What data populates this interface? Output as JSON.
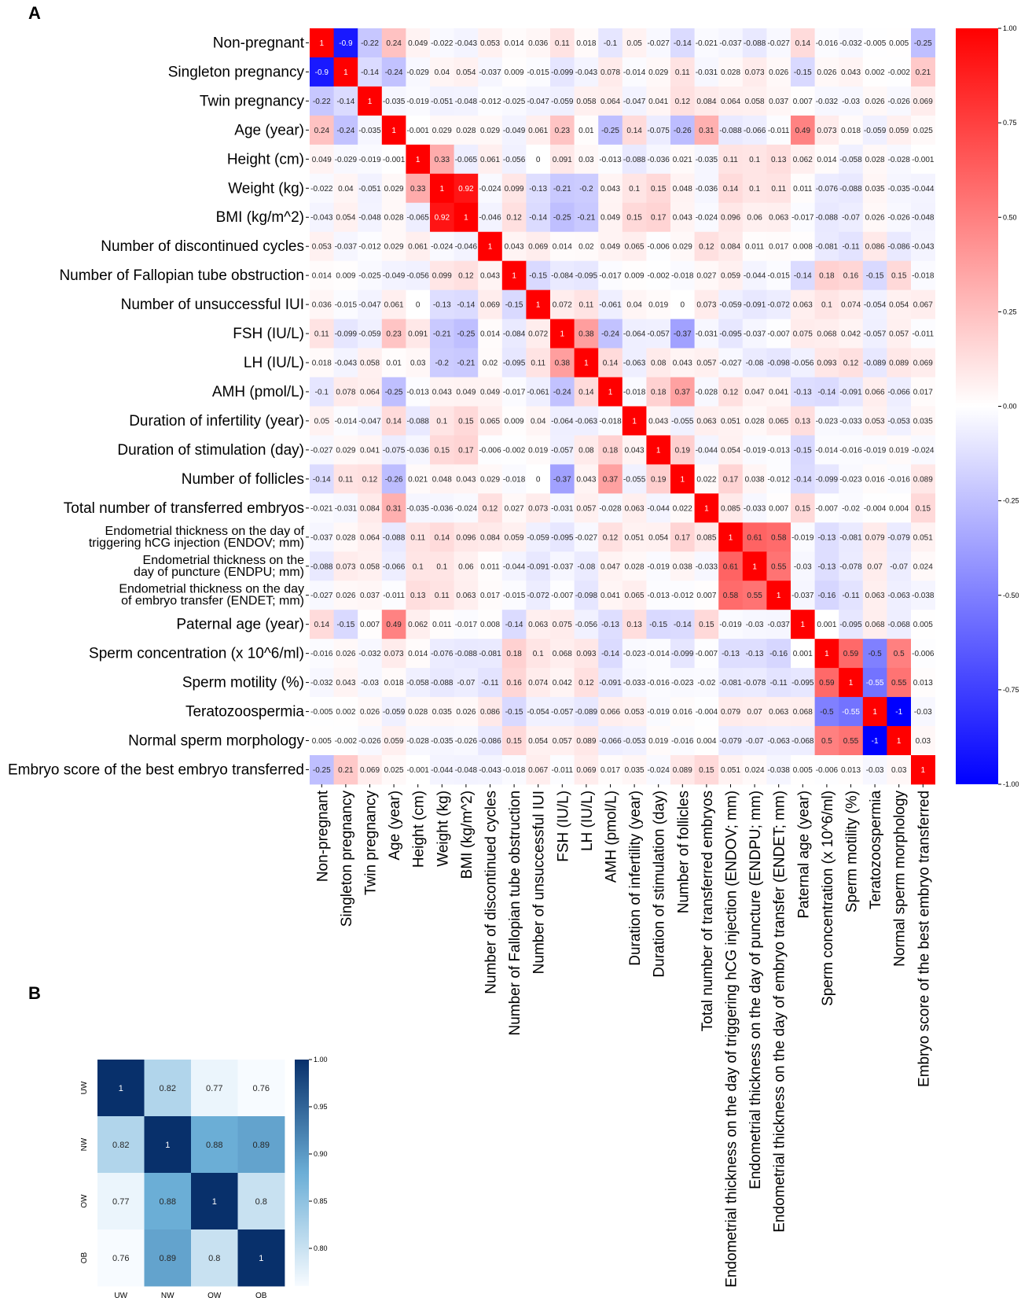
{
  "panels": {
    "a": "A",
    "b": "B"
  },
  "chart_data": [
    {
      "type": "heatmap",
      "colormap": "bwr",
      "colors": {
        "low": "#0000ff",
        "mid": "#ffffff",
        "high": "#ff0000"
      },
      "vmin": -1,
      "vmax": 1,
      "colorbar_ticks": [
        "1.00",
        "0.75",
        "0.50",
        "0.25",
        "0.00",
        "-0.25",
        "-0.50",
        "-0.75",
        "-1.00"
      ],
      "colorbar_tick_values": [
        1,
        0.75,
        0.5,
        0.25,
        0,
        -0.25,
        -0.5,
        -0.75,
        -1
      ],
      "labels": [
        {
          "row": [
            "Non-pregnant"
          ],
          "col": "Non-pregnant"
        },
        {
          "row": [
            "Singleton pregnancy"
          ],
          "col": "Singleton pregnancy"
        },
        {
          "row": [
            "Twin pregnancy"
          ],
          "col": "Twin pregnancy"
        },
        {
          "row": [
            "Age (year)"
          ],
          "col": "Age (year)"
        },
        {
          "row": [
            "Height (cm)"
          ],
          "col": "Height (cm)"
        },
        {
          "row": [
            "Weight (kg)"
          ],
          "col": "Weight (kg)"
        },
        {
          "row": [
            "BMI (kg/m^2)"
          ],
          "col": "BMI (kg/m^2)"
        },
        {
          "row": [
            "Number of discontinued cycles"
          ],
          "col": "Number of discontinued cycles"
        },
        {
          "row": [
            "Number of Fallopian tube obstruction"
          ],
          "col": "Number of Fallopian tube obstruction"
        },
        {
          "row": [
            "Number of unsuccessful IUI"
          ],
          "col": "Number of unsuccessful IUI"
        },
        {
          "row": [
            "FSH (IU/L)"
          ],
          "col": "FSH (IU/L)"
        },
        {
          "row": [
            "LH (IU/L)"
          ],
          "col": "LH (IU/L)"
        },
        {
          "row": [
            "AMH (pmol/L)"
          ],
          "col": "AMH (pmol/L)"
        },
        {
          "row": [
            "Duration of infertility (year)"
          ],
          "col": "Duration of infertility (year)"
        },
        {
          "row": [
            "Duration of stimulation (day)"
          ],
          "col": "Duration of stimulation (day)"
        },
        {
          "row": [
            "Number of follicles"
          ],
          "col": "Number of follicles"
        },
        {
          "row": [
            "Total number of transferred embryos"
          ],
          "col": "Total number of transferred embryos"
        },
        {
          "row": [
            "Endometrial thickness on the day of",
            "triggering hCG injection (ENDOV; mm)"
          ],
          "col": "Endometrial thickness on the day of triggering hCG injection (ENDOV; mm)"
        },
        {
          "row": [
            "Endometrial thickness on the",
            "day of puncture (ENDPU; mm)"
          ],
          "col": "Endometrial thickness on the day of puncture (ENDPU; mm)"
        },
        {
          "row": [
            "Endometrial thickness on the day",
            "of embryo transfer (ENDET; mm)"
          ],
          "col": "Endometrial thickness on the day of embryo transfer (ENDET; mm)"
        },
        {
          "row": [
            "Paternal age (year)"
          ],
          "col": "Paternal age (year)"
        },
        {
          "row": [
            "Sperm concentration (x 10^6/ml)"
          ],
          "col": "Sperm concentration (x 10^6/ml)"
        },
        {
          "row": [
            "Sperm motility (%)"
          ],
          "col": "Sperm motility (%)"
        },
        {
          "row": [
            "Teratozoospermia"
          ],
          "col": "Teratozoospermia"
        },
        {
          "row": [
            "Normal sperm morphology"
          ],
          "col": "Normal sperm morphology"
        },
        {
          "row": [
            "Embryo score of the best embryo transferred"
          ],
          "col": "Embryo score of the best embryo transferred"
        }
      ],
      "values": [
        [
          1,
          -0.9,
          -0.22,
          0.24,
          0.049,
          -0.022,
          -0.043,
          0.053,
          0.014,
          0.036,
          0.11,
          0.018,
          -0.1,
          0.05,
          -0.027,
          -0.14,
          -0.021,
          -0.037,
          -0.088,
          -0.027,
          0.14,
          -0.016,
          -0.032,
          -0.005,
          0.005,
          -0.25
        ],
        [
          -0.9,
          1,
          -0.14,
          -0.24,
          -0.029,
          0.04,
          0.054,
          -0.037,
          0.009,
          -0.015,
          -0.099,
          -0.043,
          0.078,
          -0.014,
          0.029,
          0.11,
          -0.031,
          0.028,
          0.073,
          0.026,
          -0.15,
          0.026,
          0.043,
          0.002,
          -0.002,
          0.21
        ],
        [
          -0.22,
          -0.14,
          1,
          -0.035,
          -0.019,
          -0.051,
          -0.048,
          -0.012,
          -0.025,
          -0.047,
          -0.059,
          0.058,
          0.064,
          -0.047,
          0.041,
          0.12,
          0.084,
          0.064,
          0.058,
          0.037,
          0.007,
          -0.032,
          -0.03,
          0.026,
          -0.026,
          0.069
        ],
        [
          0.24,
          -0.24,
          -0.035,
          1,
          -0.001,
          0.029,
          0.028,
          0.029,
          -0.049,
          0.061,
          0.23,
          0.01,
          -0.25,
          0.14,
          -0.075,
          -0.26,
          0.31,
          -0.088,
          -0.066,
          -0.011,
          0.49,
          0.073,
          0.018,
          -0.059,
          0.059,
          0.025
        ],
        [
          0.049,
          -0.029,
          -0.019,
          -0.001,
          1,
          0.33,
          -0.065,
          0.061,
          -0.056,
          0,
          0.091,
          0.03,
          -0.013,
          -0.088,
          -0.036,
          0.021,
          -0.035,
          0.11,
          0.1,
          0.13,
          0.062,
          0.014,
          -0.058,
          0.028,
          -0.028,
          -0.001
        ],
        [
          -0.022,
          0.04,
          -0.051,
          0.029,
          0.33,
          1,
          0.92,
          -0.024,
          0.099,
          -0.13,
          -0.21,
          -0.2,
          0.043,
          0.1,
          0.15,
          0.048,
          -0.036,
          0.14,
          0.1,
          0.11,
          0.011,
          -0.076,
          -0.088,
          0.035,
          -0.035,
          -0.044
        ],
        [
          -0.043,
          0.054,
          -0.048,
          0.028,
          -0.065,
          0.92,
          1,
          -0.046,
          0.12,
          -0.14,
          -0.25,
          -0.21,
          0.049,
          0.15,
          0.17,
          0.043,
          -0.024,
          0.096,
          0.06,
          0.063,
          -0.017,
          -0.088,
          -0.07,
          0.026,
          -0.026,
          -0.048
        ],
        [
          0.053,
          -0.037,
          -0.012,
          0.029,
          0.061,
          -0.024,
          -0.046,
          1,
          0.043,
          0.069,
          0.014,
          0.02,
          0.049,
          0.065,
          -0.006,
          0.029,
          0.12,
          0.084,
          0.011,
          0.017,
          0.008,
          -0.081,
          -0.11,
          0.086,
          -0.086,
          -0.043
        ],
        [
          0.014,
          0.009,
          -0.025,
          -0.049,
          -0.056,
          0.099,
          0.12,
          0.043,
          1,
          -0.15,
          -0.084,
          -0.095,
          -0.017,
          0.009,
          -0.002,
          -0.018,
          0.027,
          0.059,
          -0.044,
          -0.015,
          -0.14,
          0.18,
          0.16,
          -0.15,
          0.15,
          -0.018
        ],
        [
          0.036,
          -0.015,
          -0.047,
          0.061,
          0,
          -0.13,
          -0.14,
          0.069,
          -0.15,
          1,
          0.072,
          0.11,
          -0.061,
          0.04,
          0.019,
          0,
          0.073,
          -0.059,
          -0.091,
          -0.072,
          0.063,
          0.1,
          0.074,
          -0.054,
          0.054,
          0.067
        ],
        [
          0.11,
          -0.099,
          -0.059,
          0.23,
          0.091,
          -0.21,
          -0.25,
          0.014,
          -0.084,
          0.072,
          1,
          0.38,
          -0.24,
          -0.064,
          -0.057,
          -0.37,
          -0.031,
          -0.095,
          -0.037,
          -0.007,
          0.075,
          0.068,
          0.042,
          -0.057,
          0.057,
          -0.011
        ],
        [
          0.018,
          -0.043,
          0.058,
          0.01,
          0.03,
          -0.2,
          -0.21,
          0.02,
          -0.095,
          0.11,
          0.38,
          1,
          0.14,
          -0.063,
          0.08,
          0.043,
          0.057,
          -0.027,
          -0.08,
          -0.098,
          -0.056,
          0.093,
          0.12,
          -0.089,
          0.089,
          0.069
        ],
        [
          -0.1,
          0.078,
          0.064,
          -0.25,
          -0.013,
          0.043,
          0.049,
          0.049,
          -0.017,
          -0.061,
          -0.24,
          0.14,
          1,
          -0.018,
          0.18,
          0.37,
          -0.028,
          0.12,
          0.047,
          0.041,
          -0.13,
          -0.14,
          -0.091,
          0.066,
          -0.066,
          0.017
        ],
        [
          0.05,
          -0.014,
          -0.047,
          0.14,
          -0.088,
          0.1,
          0.15,
          0.065,
          0.009,
          0.04,
          -0.064,
          -0.063,
          -0.018,
          1,
          0.043,
          -0.055,
          0.063,
          0.051,
          0.028,
          0.065,
          0.13,
          -0.023,
          -0.033,
          0.053,
          -0.053,
          0.035
        ],
        [
          -0.027,
          0.029,
          0.041,
          -0.075,
          -0.036,
          0.15,
          0.17,
          -0.006,
          -0.002,
          0.019,
          -0.057,
          0.08,
          0.18,
          0.043,
          1,
          0.19,
          -0.044,
          0.054,
          -0.019,
          -0.013,
          -0.15,
          -0.014,
          -0.016,
          -0.019,
          0.019,
          -0.024
        ],
        [
          -0.14,
          0.11,
          0.12,
          -0.26,
          0.021,
          0.048,
          0.043,
          0.029,
          -0.018,
          0,
          -0.37,
          0.043,
          0.37,
          -0.055,
          0.19,
          1,
          0.022,
          0.17,
          0.038,
          -0.012,
          -0.14,
          -0.099,
          -0.023,
          0.016,
          -0.016,
          0.089
        ],
        [
          -0.021,
          -0.031,
          0.084,
          0.31,
          -0.035,
          -0.036,
          -0.024,
          0.12,
          0.027,
          0.073,
          -0.031,
          0.057,
          -0.028,
          0.063,
          -0.044,
          0.022,
          1,
          0.085,
          -0.033,
          0.007,
          0.15,
          -0.007,
          -0.02,
          -0.004,
          0.004,
          0.15
        ],
        [
          -0.037,
          0.028,
          0.064,
          -0.088,
          0.11,
          0.14,
          0.096,
          0.084,
          0.059,
          -0.059,
          -0.095,
          -0.027,
          0.12,
          0.051,
          0.054,
          0.17,
          0.085,
          1,
          0.61,
          0.58,
          -0.019,
          -0.13,
          -0.081,
          0.079,
          -0.079,
          0.051
        ],
        [
          -0.088,
          0.073,
          0.058,
          -0.066,
          0.1,
          0.1,
          0.06,
          0.011,
          -0.044,
          -0.091,
          -0.037,
          -0.08,
          0.047,
          0.028,
          -0.019,
          0.038,
          -0.033,
          0.61,
          1,
          0.55,
          -0.03,
          -0.13,
          -0.078,
          0.07,
          -0.07,
          0.024
        ],
        [
          -0.027,
          0.026,
          0.037,
          -0.011,
          0.13,
          0.11,
          0.063,
          0.017,
          -0.015,
          -0.072,
          -0.007,
          -0.098,
          0.041,
          0.065,
          -0.013,
          -0.012,
          0.007,
          0.58,
          0.55,
          1,
          -0.037,
          -0.16,
          -0.11,
          0.063,
          -0.063,
          -0.038
        ],
        [
          0.14,
          -0.15,
          0.007,
          0.49,
          0.062,
          0.011,
          -0.017,
          0.008,
          -0.14,
          0.063,
          0.075,
          -0.056,
          -0.13,
          0.13,
          -0.15,
          -0.14,
          0.15,
          -0.019,
          -0.03,
          -0.037,
          1,
          0.001,
          -0.095,
          0.068,
          -0.068,
          0.005
        ],
        [
          -0.016,
          0.026,
          -0.032,
          0.073,
          0.014,
          -0.076,
          -0.088,
          -0.081,
          0.18,
          0.1,
          0.068,
          0.093,
          -0.14,
          -0.023,
          -0.014,
          -0.099,
          -0.007,
          -0.13,
          -0.13,
          -0.16,
          0.001,
          1,
          0.59,
          -0.5,
          0.5,
          -0.006
        ],
        [
          -0.032,
          0.043,
          -0.03,
          0.018,
          -0.058,
          -0.088,
          -0.07,
          -0.11,
          0.16,
          0.074,
          0.042,
          0.12,
          -0.091,
          -0.033,
          -0.016,
          -0.023,
          -0.02,
          -0.081,
          -0.078,
          -0.11,
          -0.095,
          0.59,
          1,
          -0.55,
          0.55,
          0.013
        ],
        [
          -0.005,
          0.002,
          0.026,
          -0.059,
          0.028,
          0.035,
          0.026,
          0.086,
          -0.15,
          -0.054,
          -0.057,
          -0.089,
          0.066,
          0.053,
          -0.019,
          0.016,
          -0.004,
          0.079,
          0.07,
          0.063,
          0.068,
          -0.5,
          -0.55,
          1,
          -1,
          -0.03
        ],
        [
          0.005,
          -0.002,
          -0.026,
          0.059,
          -0.028,
          -0.035,
          -0.026,
          -0.086,
          0.15,
          0.054,
          0.057,
          0.089,
          -0.066,
          -0.053,
          0.019,
          -0.016,
          0.004,
          -0.079,
          -0.07,
          -0.063,
          -0.068,
          0.5,
          0.55,
          -1,
          1,
          0.03
        ],
        [
          -0.25,
          0.21,
          0.069,
          0.025,
          -0.001,
          -0.044,
          -0.048,
          -0.043,
          -0.018,
          0.067,
          -0.011,
          0.069,
          0.017,
          0.035,
          -0.024,
          0.089,
          0.15,
          0.051,
          0.024,
          -0.038,
          0.005,
          -0.006,
          0.013,
          -0.03,
          0.03,
          1
        ]
      ]
    },
    {
      "type": "heatmap",
      "colormap": "Blues",
      "colors": {
        "low": "#f7fbff",
        "mid": "#6baed6",
        "high": "#08306b"
      },
      "vmin": 0.76,
      "vmax": 1,
      "colorbar_ticks": [
        "1.00",
        "0.95",
        "0.90",
        "0.85",
        "0.80"
      ],
      "colorbar_tick_values": [
        1,
        0.95,
        0.9,
        0.85,
        0.8
      ],
      "labels": [
        "UW",
        "NW",
        "OW",
        "OB"
      ],
      "values": [
        [
          1,
          0.82,
          0.77,
          0.76
        ],
        [
          0.82,
          1,
          0.88,
          0.89
        ],
        [
          0.77,
          0.88,
          1,
          0.8
        ],
        [
          0.76,
          0.89,
          0.8,
          1
        ]
      ]
    }
  ]
}
